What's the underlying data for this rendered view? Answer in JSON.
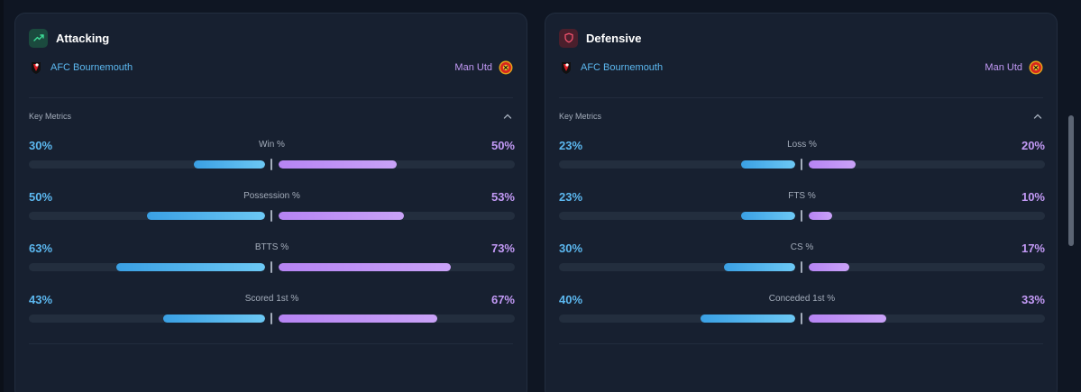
{
  "colors": {
    "home": "#5cb8f0",
    "away": "#c39af6",
    "background": "#0f1623",
    "panel": "#172030"
  },
  "panels": [
    {
      "title": "Attacking",
      "icon": "trending-up-icon",
      "home_team": "AFC Bournemouth",
      "away_team": "Man Utd",
      "section_label": "Key Metrics",
      "metrics": [
        {
          "label": "Win %",
          "home": "30%",
          "away": "50%",
          "home_frac": 0.3,
          "away_frac": 0.5
        },
        {
          "label": "Possession %",
          "home": "50%",
          "away": "53%",
          "home_frac": 0.5,
          "away_frac": 0.53
        },
        {
          "label": "BTTS %",
          "home": "63%",
          "away": "73%",
          "home_frac": 0.63,
          "away_frac": 0.73
        },
        {
          "label": "Scored 1st %",
          "home": "43%",
          "away": "67%",
          "home_frac": 0.43,
          "away_frac": 0.67
        }
      ]
    },
    {
      "title": "Defensive",
      "icon": "shield-icon",
      "home_team": "AFC Bournemouth",
      "away_team": "Man Utd",
      "section_label": "Key Metrics",
      "metrics": [
        {
          "label": "Loss %",
          "home": "23%",
          "away": "20%",
          "home_frac": 0.23,
          "away_frac": 0.2
        },
        {
          "label": "FTS %",
          "home": "23%",
          "away": "10%",
          "home_frac": 0.23,
          "away_frac": 0.1
        },
        {
          "label": "CS %",
          "home": "30%",
          "away": "17%",
          "home_frac": 0.3,
          "away_frac": 0.17
        },
        {
          "label": "Conceded 1st %",
          "home": "40%",
          "away": "33%",
          "home_frac": 0.4,
          "away_frac": 0.33
        }
      ]
    }
  ]
}
